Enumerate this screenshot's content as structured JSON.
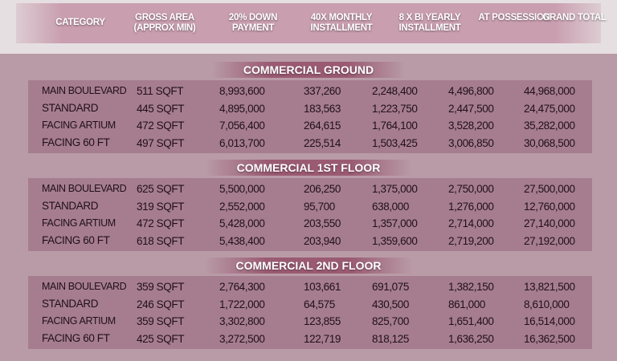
{
  "headers": [
    "CATEGORY",
    "GROSS AREA (APPROX MIN)",
    "20% DOWN PAYMENT",
    "40X MONTHLY INSTALLMENT",
    "8 X BI YEARLY INSTALLMENT",
    "AT POSSESSION",
    "GRAND TOTAL"
  ],
  "sections": [
    {
      "title": "COMMERCIAL GROUND",
      "rows": [
        [
          "MAIN BOULEVARD",
          "511 SQFT",
          "8,993,600",
          "337,260",
          "2,248,400",
          "4,496,800",
          "44,968,000"
        ],
        [
          "STANDARD",
          "445 SQFT",
          "4,895,000",
          "183,563",
          "1,223,750",
          "2,447,500",
          "24,475,000"
        ],
        [
          "FACING ARTIUM",
          "472 SQFT",
          "7,056,400",
          "264,615",
          "1,764,100",
          "3,528,200",
          "35,282,000"
        ],
        [
          "FACING 60 FT",
          "497 SQFT",
          "6,013,700",
          "225,514",
          "1,503,425",
          "3,006,850",
          "30,068,500"
        ]
      ]
    },
    {
      "title": "COMMERCIAL 1ST FLOOR",
      "rows": [
        [
          "MAIN BOULEVARD",
          "625 SQFT",
          "5,500,000",
          "206,250",
          "1,375,000",
          "2,750,000",
          "27,500,000"
        ],
        [
          "STANDARD",
          "319 SQFT",
          "2,552,000",
          "95,700",
          "638,000",
          "1,276,000",
          "12,760,000"
        ],
        [
          "FACING ARTIUM",
          "472 SQFT",
          "5,428,000",
          "203,550",
          "1,357,000",
          "2,714,000",
          "27,140,000"
        ],
        [
          "FACING 60 FT",
          "618 SQFT",
          "5,438,400",
          "203,940",
          "1,359,600",
          "2,719,200",
          "27,192,000"
        ]
      ]
    },
    {
      "title": "COMMERCIAL 2ND FLOOR",
      "rows": [
        [
          "MAIN BOULEVARD",
          "359 SQFT",
          "2,764,300",
          "103,661",
          "691,075",
          "1,382,150",
          "13,821,500"
        ],
        [
          "STANDARD",
          "246 SQFT",
          "1,722,000",
          "64,575",
          "430,500",
          "861,000",
          "8,610,000"
        ],
        [
          "FACING ARTIUM",
          "359 SQFT",
          "3,302,800",
          "123,855",
          "825,700",
          "1,651,400",
          "16,514,000"
        ],
        [
          "FACING 60 FT",
          "425 SQFT",
          "3,272,500",
          "122,719",
          "818,125",
          "1,636,250",
          "16,362,500"
        ]
      ]
    }
  ],
  "colors": {
    "header": "#c99eae",
    "panel": "#b99ba7",
    "table": "#a67d8f",
    "section_title": "#9a5a72"
  }
}
